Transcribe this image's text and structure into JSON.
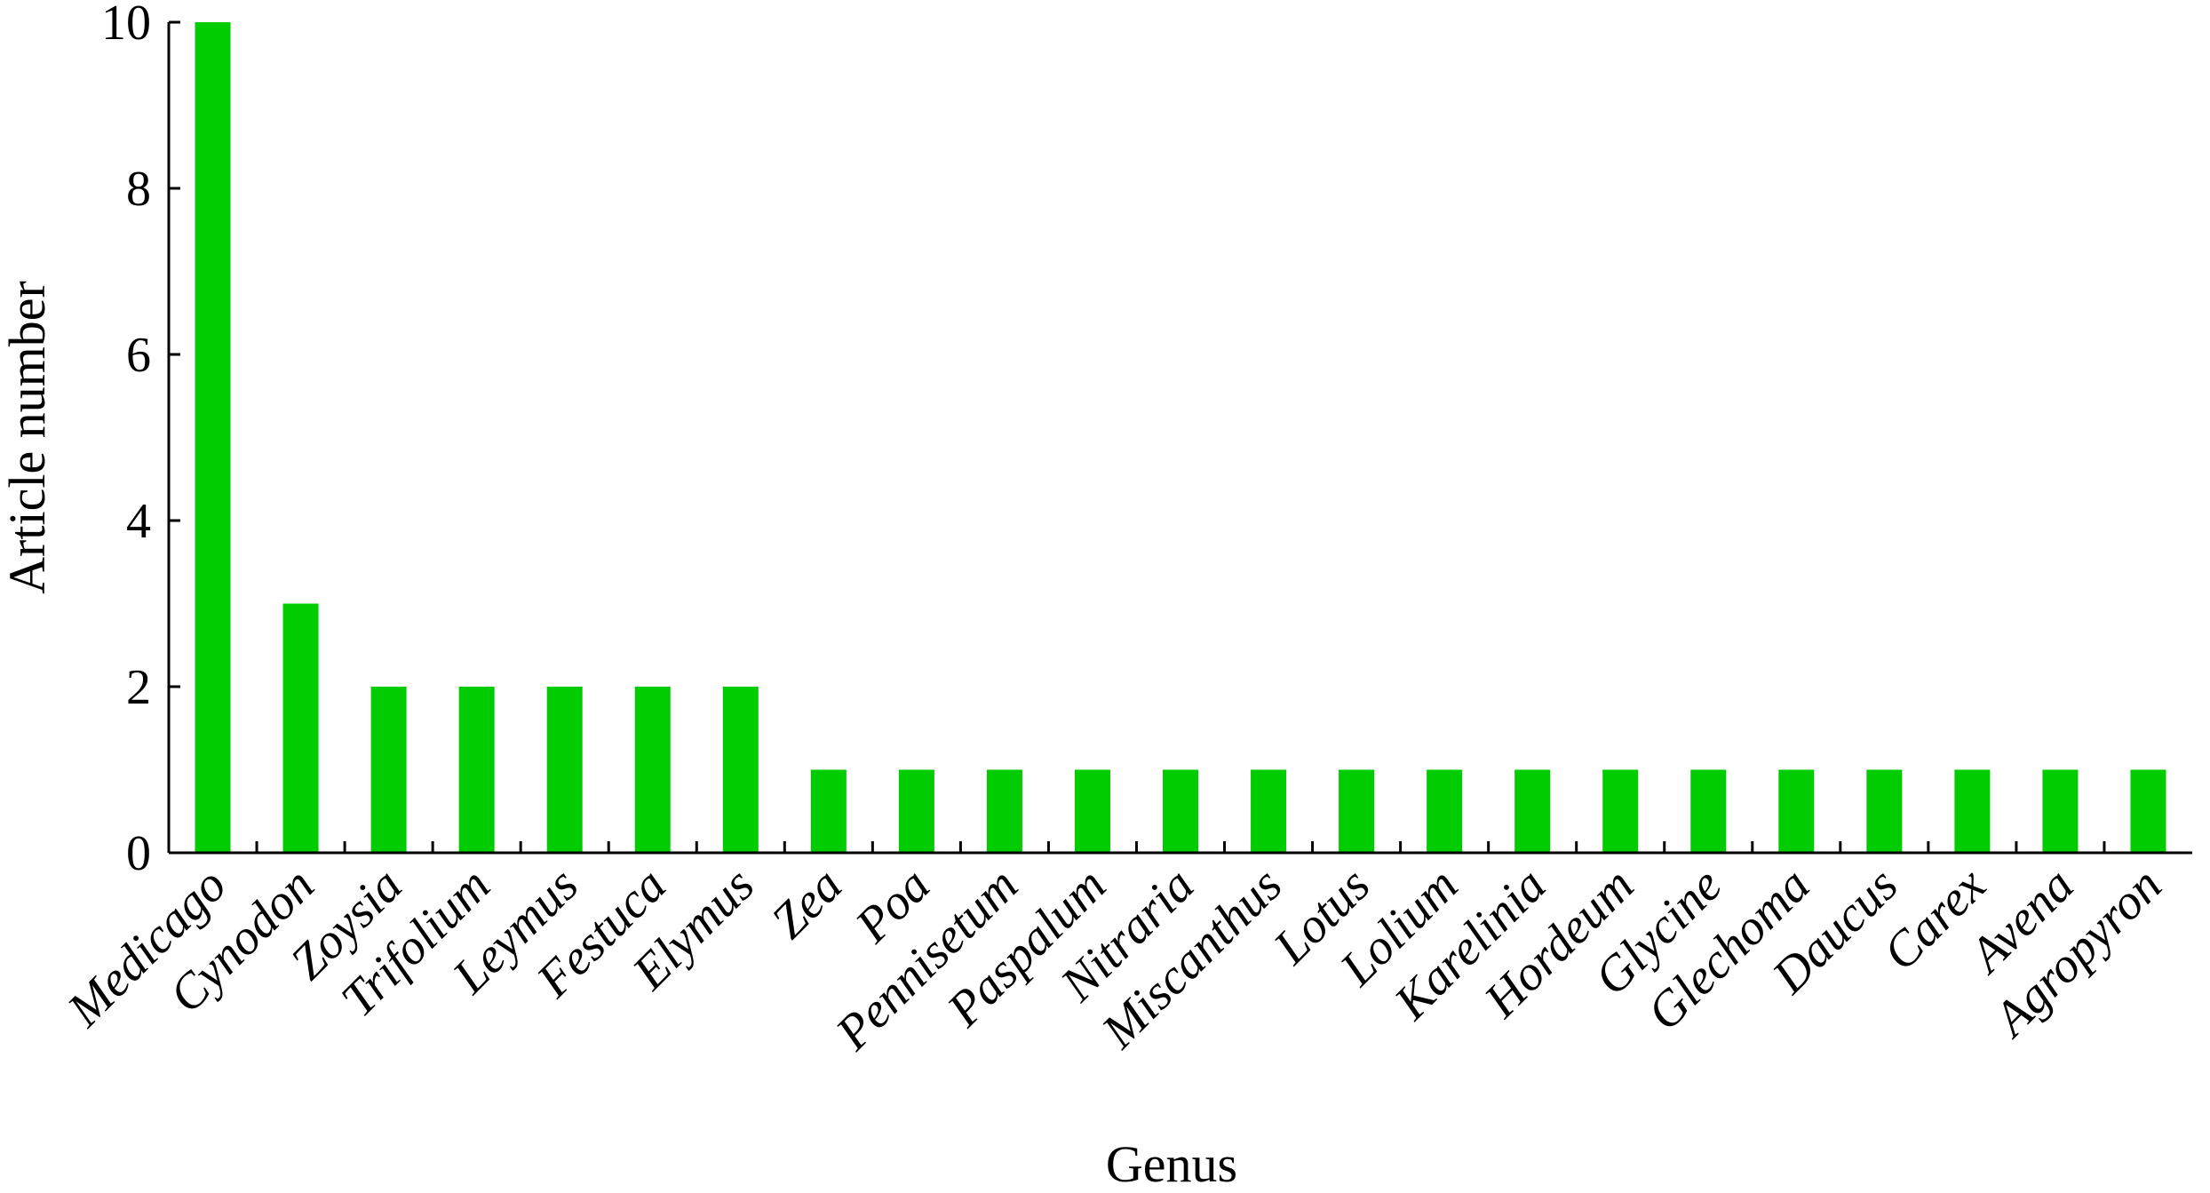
{
  "chart_data": {
    "type": "bar",
    "title": "",
    "xlabel": "Genus",
    "ylabel": "Article number",
    "ylim": [
      0,
      10
    ],
    "yticks": [
      0,
      2,
      4,
      6,
      8,
      10
    ],
    "grid": false,
    "legend": "none",
    "bar_color": "#00CC00",
    "axis_color": "#000000",
    "categories": [
      "Medicago",
      "Cynodon",
      "Zoysia",
      "Trifolium",
      "Leymus",
      "Festuca",
      "Elymus",
      "Zea",
      "Poa",
      "Pennisetum",
      "Paspalum",
      "Nitraria",
      "Miscanthus",
      "Lotus",
      "Lolium",
      "Karelinia",
      "Hordeum",
      "Glycine",
      "Glechoma",
      "Daucus",
      "Carex",
      "Avena",
      "Agropyron"
    ],
    "values": [
      10,
      3,
      2,
      2,
      2,
      2,
      2,
      1,
      1,
      1,
      1,
      1,
      1,
      1,
      1,
      1,
      1,
      1,
      1,
      1,
      1,
      1,
      1
    ]
  }
}
